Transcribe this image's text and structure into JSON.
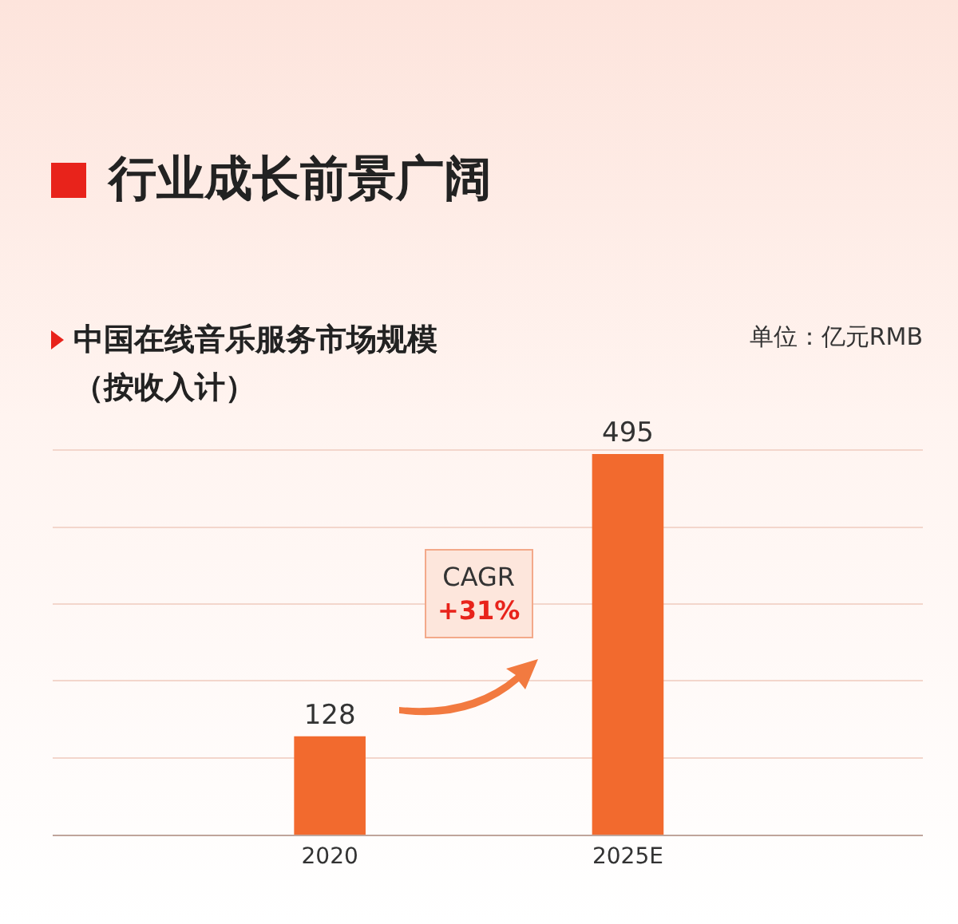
{
  "chart_data": {
    "type": "bar",
    "title": "行业成长前景广阔",
    "subtitle": "中国在线音乐服务市场规模（按收入计）",
    "categories": [
      "2020",
      "2025E"
    ],
    "values": [
      128,
      495
    ],
    "color": "#f26a2e",
    "data_labels": true,
    "grid": "y",
    "tick_labels": "x",
    "annotations": [
      "单位：亿元RMB",
      "CAGR",
      "+31%"
    ]
  }
}
